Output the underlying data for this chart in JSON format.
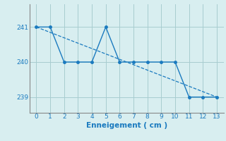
{
  "x": [
    0,
    1,
    2,
    3,
    4,
    5,
    6,
    7,
    8,
    9,
    10,
    11,
    12,
    13
  ],
  "y_solid": [
    241,
    241,
    240,
    240,
    240,
    241,
    240,
    240,
    240,
    240,
    240,
    239,
    239,
    239
  ],
  "y_dashed": [
    241.0,
    240.846,
    240.692,
    240.538,
    240.385,
    240.231,
    240.077,
    239.923,
    239.769,
    239.615,
    239.462,
    239.308,
    239.154,
    239.0
  ],
  "line_color": "#1a7abf",
  "background_color": "#d8eef0",
  "grid_color": "#a8ccd0",
  "xlabel": "Enneigement ( cm )",
  "xlabel_color": "#1a7abf",
  "yticks": [
    239,
    240,
    241
  ],
  "xticks": [
    0,
    1,
    2,
    3,
    4,
    5,
    6,
    7,
    8,
    9,
    10,
    11,
    12,
    13
  ],
  "ylim": [
    238.55,
    241.65
  ],
  "xlim": [
    -0.5,
    13.5
  ]
}
